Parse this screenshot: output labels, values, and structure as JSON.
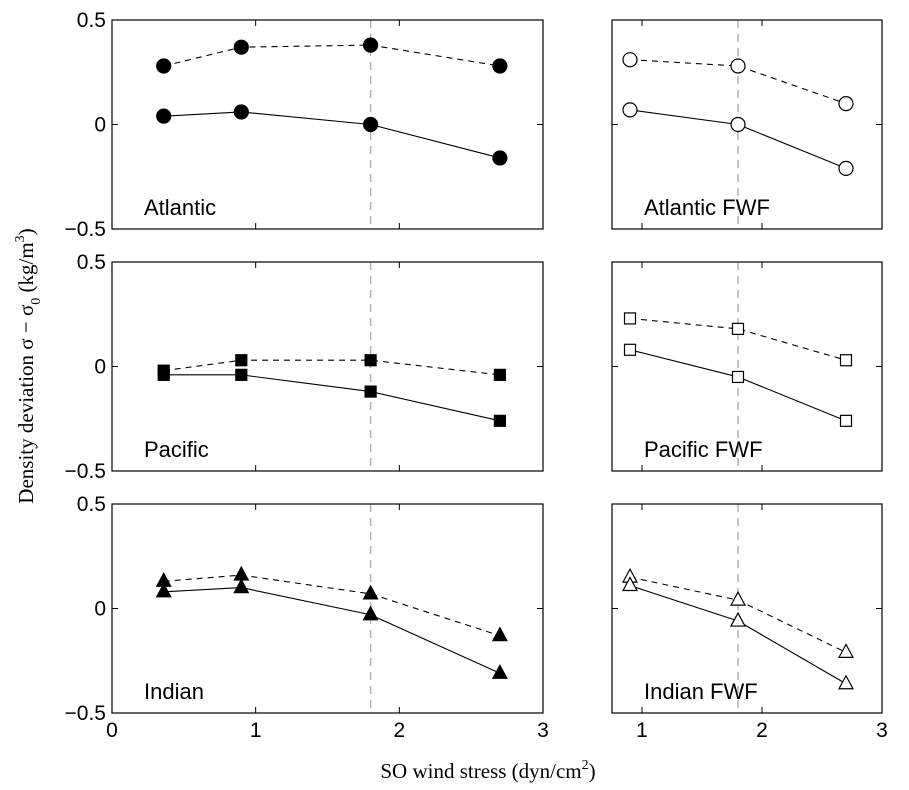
{
  "figure": {
    "xlabel": "SO wind stress (dyn/cm",
    "xlabel_sup": "2",
    "xlabel_end": ")",
    "ylabel_a": "Density deviation σ − σ",
    "ylabel_sub": "0",
    "ylabel_b": " (kg/m",
    "ylabel_sup": "3",
    "ylabel_c": ")"
  },
  "chart_data": [
    {
      "type": "line",
      "label": "Atlantic",
      "marker": "circle",
      "filled": true,
      "xlim": [
        0,
        3
      ],
      "ylim": [
        -0.5,
        0.5
      ],
      "reference_x": 1.8,
      "x": [
        0.36,
        0.9,
        1.8,
        2.7
      ],
      "series": [
        {
          "style": "dashed",
          "values": [
            0.28,
            0.37,
            0.38,
            0.28
          ]
        },
        {
          "style": "solid",
          "values": [
            0.04,
            0.06,
            0.0,
            -0.16
          ]
        }
      ]
    },
    {
      "type": "line",
      "label": "Atlantic FWF",
      "marker": "circle",
      "filled": false,
      "xlim": [
        0.75,
        3
      ],
      "ylim": [
        -0.5,
        0.5
      ],
      "reference_x": 1.8,
      "x": [
        0.9,
        1.8,
        2.7
      ],
      "series": [
        {
          "style": "dashed",
          "values": [
            0.31,
            0.28,
            0.1
          ]
        },
        {
          "style": "solid",
          "values": [
            0.07,
            0.0,
            -0.21
          ]
        }
      ]
    },
    {
      "type": "line",
      "label": "Pacific",
      "marker": "square",
      "filled": true,
      "xlim": [
        0,
        3
      ],
      "ylim": [
        -0.5,
        0.5
      ],
      "reference_x": 1.8,
      "x": [
        0.36,
        0.9,
        1.8,
        2.7
      ],
      "series": [
        {
          "style": "dashed",
          "values": [
            -0.02,
            0.03,
            0.03,
            -0.04
          ]
        },
        {
          "style": "solid",
          "values": [
            -0.04,
            -0.04,
            -0.12,
            -0.26
          ]
        }
      ]
    },
    {
      "type": "line",
      "label": "Pacific FWF",
      "marker": "square",
      "filled": false,
      "xlim": [
        0.75,
        3
      ],
      "ylim": [
        -0.5,
        0.5
      ],
      "reference_x": 1.8,
      "x": [
        0.9,
        1.8,
        2.7
      ],
      "series": [
        {
          "style": "dashed",
          "values": [
            0.23,
            0.18,
            0.03
          ]
        },
        {
          "style": "solid",
          "values": [
            0.08,
            -0.05,
            -0.26
          ]
        }
      ]
    },
    {
      "type": "line",
      "label": "Indian",
      "marker": "triangle",
      "filled": true,
      "xlim": [
        0,
        3
      ],
      "ylim": [
        -0.5,
        0.5
      ],
      "reference_x": 1.8,
      "x": [
        0.36,
        0.9,
        1.8,
        2.7
      ],
      "series": [
        {
          "style": "dashed",
          "values": [
            0.13,
            0.16,
            0.07,
            -0.13
          ]
        },
        {
          "style": "solid",
          "values": [
            0.08,
            0.1,
            -0.03,
            -0.31
          ]
        }
      ]
    },
    {
      "type": "line",
      "label": "Indian FWF",
      "marker": "triangle",
      "filled": false,
      "xlim": [
        0.75,
        3
      ],
      "ylim": [
        -0.5,
        0.5
      ],
      "reference_x": 1.8,
      "x": [
        0.9,
        1.8,
        2.7
      ],
      "series": [
        {
          "style": "dashed",
          "values": [
            0.15,
            0.04,
            -0.21
          ]
        },
        {
          "style": "solid",
          "values": [
            0.11,
            -0.06,
            -0.36
          ]
        }
      ]
    }
  ],
  "ticks": {
    "y": [
      "0.5",
      "0",
      "−0.5"
    ],
    "x_left": [
      "0",
      "1",
      "2",
      "3"
    ],
    "x_right": [
      "1",
      "2",
      "3"
    ]
  }
}
